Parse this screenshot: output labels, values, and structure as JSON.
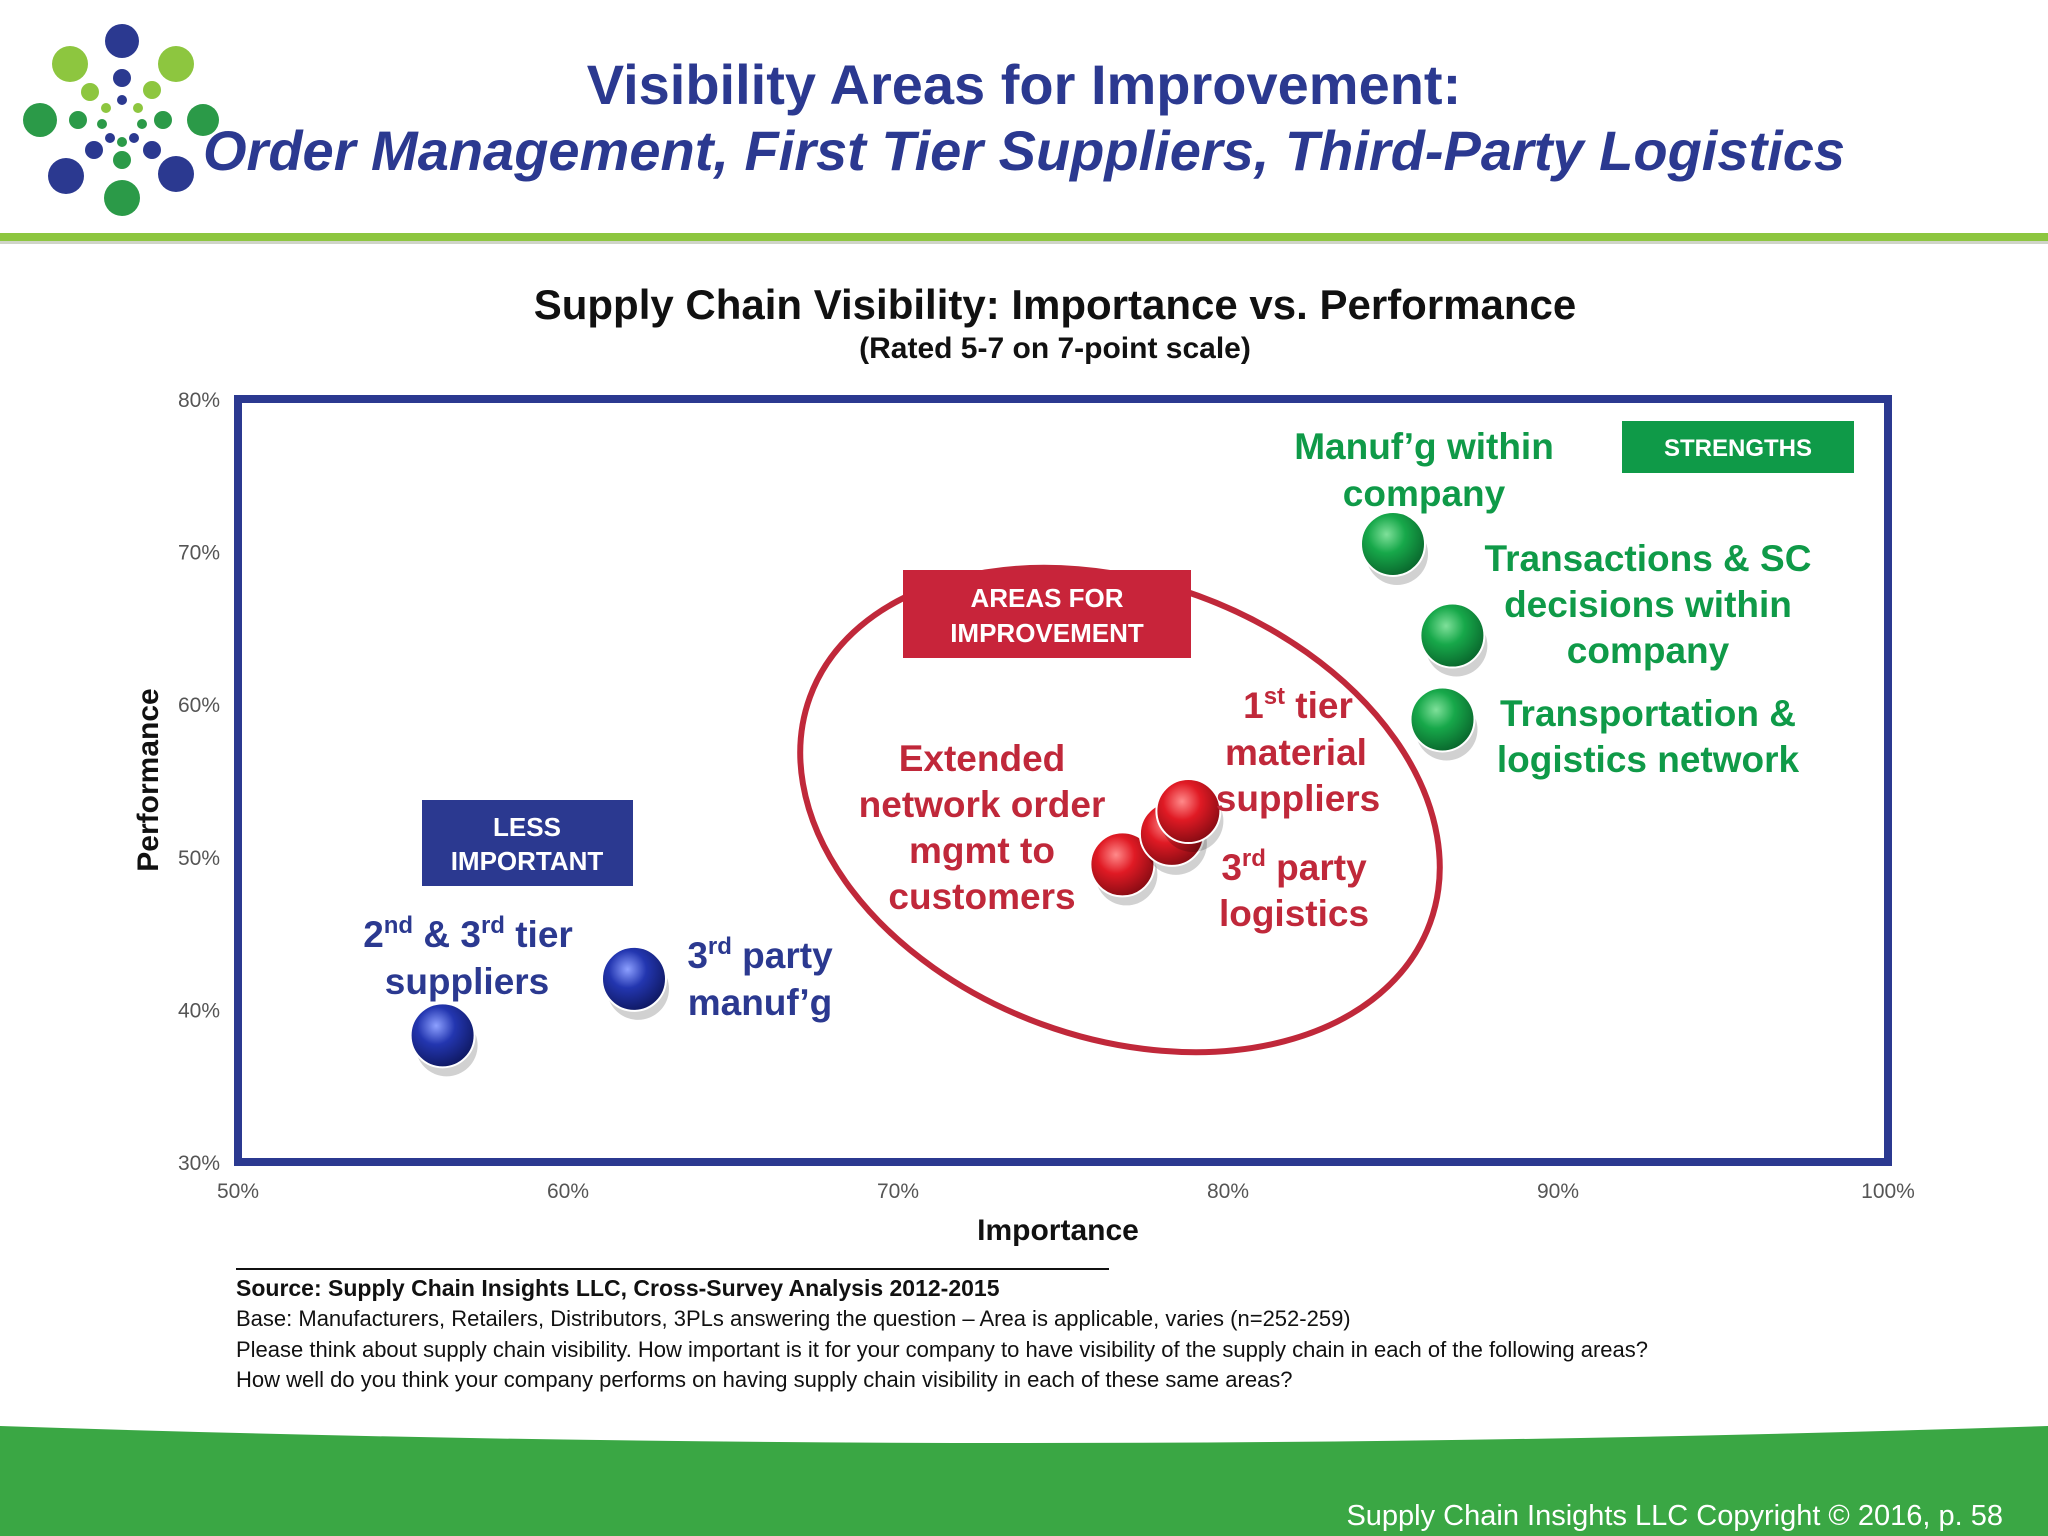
{
  "header": {
    "title_line1": "Visibility Areas for Improvement:",
    "title_line2": "Order Management, First Tier Suppliers, Third-Party Logistics"
  },
  "colors": {
    "brand_blue": "#2b3990",
    "brand_green": "#8dc63f",
    "footer_green": "#3aa744",
    "strength_green": "#0f9a48",
    "improve_red": "#c0283a",
    "less_blue": "#2b3990"
  },
  "chart_data": {
    "type": "scatter",
    "title": "Supply Chain Visibility:  Importance vs. Performance",
    "subtitle": "(Rated 5-7 on 7-point scale)",
    "xlabel": "Importance",
    "ylabel": "Performance",
    "xlim": [
      50,
      100
    ],
    "ylim": [
      30,
      80
    ],
    "x_ticks": [
      "50%",
      "60%",
      "70%",
      "80%",
      "90%",
      "100%"
    ],
    "y_ticks": [
      "30%",
      "40%",
      "50%",
      "60%",
      "70%",
      "80%"
    ],
    "grid": false,
    "points": [
      {
        "group": "strengths",
        "x": 85,
        "y": 70.5,
        "label": "Manuf’g within company"
      },
      {
        "group": "strengths",
        "x": 86.8,
        "y": 64.5,
        "label": "Transactions & SC decisions within company"
      },
      {
        "group": "strengths",
        "x": 86.5,
        "y": 59,
        "label": "Transportation & logistics network"
      },
      {
        "group": "improvement",
        "x": 78.8,
        "y": 53,
        "label": "1st tier material suppliers"
      },
      {
        "group": "improvement",
        "x": 78.3,
        "y": 51.5,
        "label": "3rd party logistics"
      },
      {
        "group": "improvement",
        "x": 76.8,
        "y": 49.5,
        "label": "Extended network order mgmt to customers"
      },
      {
        "group": "less",
        "x": 62,
        "y": 42,
        "label": "3rd party manuf’g"
      },
      {
        "group": "less",
        "x": 56.2,
        "y": 38.3,
        "label": "2nd & 3rd tier suppliers"
      }
    ],
    "zones": {
      "strengths": "STRENGTHS",
      "improvement_line1": "AREAS FOR",
      "improvement_line2": "IMPROVEMENT",
      "less_line1": "LESS",
      "less_line2": "IMPORTANT"
    },
    "annotations": {
      "manufg_line1": "Manuf’g within",
      "manufg_line2": "company",
      "trans_line1": "Transactions & SC",
      "trans_line2": "decisions within",
      "trans_line3": "company",
      "transport_line1": "Transportation &",
      "transport_line2": "logistics network",
      "tier1_sup": "st",
      "tier1_rest": " tier",
      "tier1_num": "1",
      "tier1_line2": "material",
      "tier1_line3": "suppliers",
      "tpl_num": "3",
      "tpl_sup": "rd",
      "tpl_rest": " party",
      "tpl_line2": "logistics",
      "ext_line1": "Extended",
      "ext_line2": "network  order",
      "ext_line3": "mgmt to",
      "ext_line4": "customers",
      "tier23_a": "2",
      "tier23_a_sup": "nd",
      "tier23_mid": " & 3",
      "tier23_b_sup": "rd",
      "tier23_rest": " tier",
      "tier23_line2": "suppliers",
      "manu3_num": "3",
      "manu3_sup": "rd",
      "manu3_rest": " party",
      "manu3_line2": "manuf’g"
    }
  },
  "source": {
    "line1": "Source:  Supply Chain Insights LLC, Cross-Survey Analysis 2012-2015",
    "line2": "Base:  Manufacturers,  Retailers, Distributors, 3PLs answering the question – Area is applicable, varies (n=252-259)",
    "line3": "Please think about supply chain visibility. How important is it for your company to have visibility of the supply chain in each of the following areas?",
    "line4": "How well do you think your company performs on having supply chain visibility in each of these same areas?"
  },
  "footer": {
    "copyright": "Supply Chain Insights LLC Copyright © 2016, p. 58"
  }
}
